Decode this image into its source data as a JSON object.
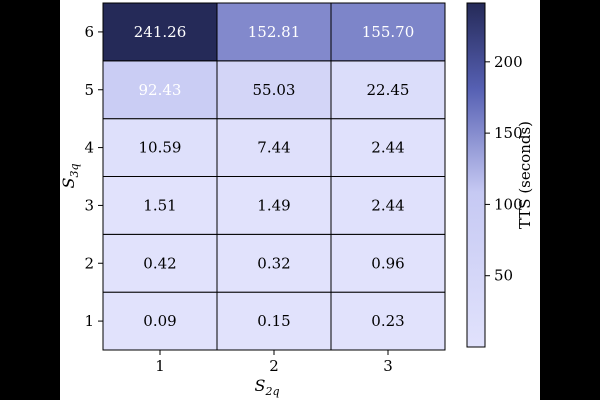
{
  "chart_data": {
    "type": "heatmap",
    "xlabel": "S",
    "xlabel_sub": "2q",
    "ylabel": "S",
    "ylabel_sub": "3q",
    "x_categories": [
      "1",
      "2",
      "3"
    ],
    "y_categories": [
      "1",
      "2",
      "3",
      "4",
      "5",
      "6"
    ],
    "cell_labels": [
      [
        "0.09",
        "0.15",
        "0.23"
      ],
      [
        "0.42",
        "0.32",
        "0.96"
      ],
      [
        "1.51",
        "1.49",
        "2.44"
      ],
      [
        "10.59",
        "7.44",
        "2.44"
      ],
      [
        "92.43",
        "55.03",
        "22.45"
      ],
      [
        "241.26",
        "152.81",
        "155.70"
      ]
    ],
    "values": [
      [
        0.09,
        0.15,
        0.23
      ],
      [
        0.42,
        0.32,
        0.96
      ],
      [
        1.51,
        1.49,
        2.44
      ],
      [
        10.59,
        7.44,
        2.44
      ],
      [
        92.43,
        55.03,
        22.45
      ],
      [
        241.26,
        152.81,
        155.7
      ]
    ],
    "colorbar": {
      "label": "TTS (seconds)",
      "vmin": 0,
      "vmax": 241.26,
      "ticks": [
        50,
        100,
        150,
        200
      ],
      "tick_labels": [
        "50",
        "100",
        "150",
        "200"
      ],
      "color_low": "#e1e2fc",
      "color_high": "#252a58"
    }
  }
}
